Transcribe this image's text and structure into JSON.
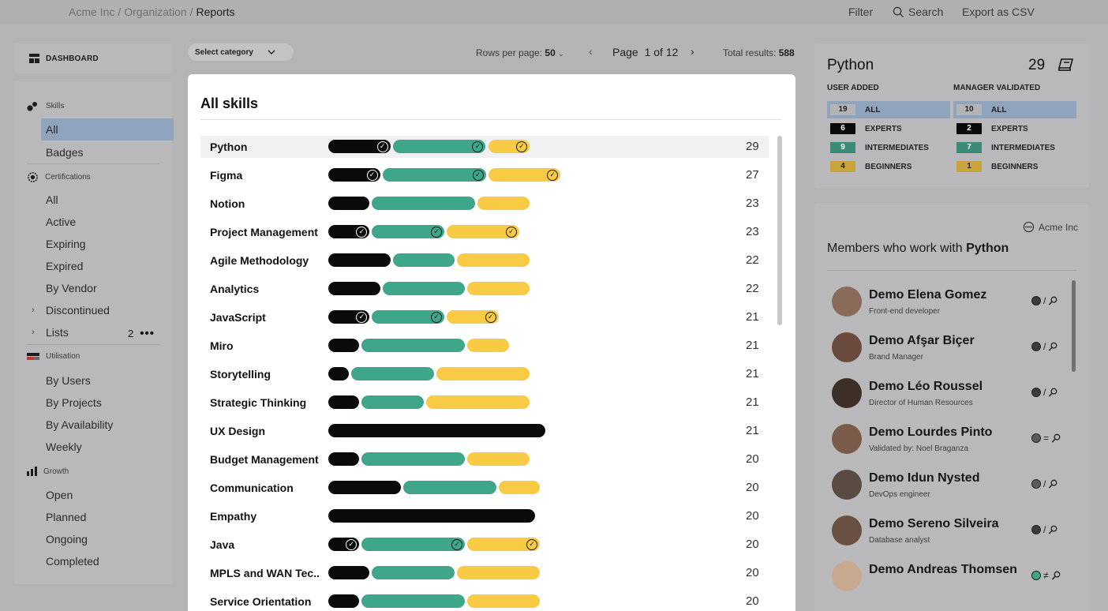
{
  "breadcrumb": {
    "org": "Acme Inc",
    "section": "Organization",
    "current": "Reports"
  },
  "toolbar": {
    "filter": "Filter",
    "search": "Search",
    "export": "Export as CSV"
  },
  "dashboard": {
    "label": "DASHBOARD"
  },
  "nav": {
    "skills": {
      "title": "Skills",
      "items": [
        "All",
        "Badges"
      ]
    },
    "certifications": {
      "title": "Certifications",
      "items": [
        "All",
        "Active",
        "Expiring",
        "Expired",
        "By Vendor"
      ],
      "expandable": [
        "Discontinued",
        "Lists"
      ],
      "lists_count": "2"
    },
    "utilisation": {
      "title": "Utilisation",
      "items": [
        "By Users",
        "By Projects",
        "By Availability",
        "Weekly"
      ]
    },
    "growth": {
      "title": "Growth",
      "items": [
        "Open",
        "Planned",
        "Ongoing",
        "Completed"
      ]
    }
  },
  "controls": {
    "category": "Select category",
    "rows_label": "Rows per page:",
    "rows_value": "50",
    "page_label": "Page",
    "page_value": "1 of 12",
    "total_label": "Total results:",
    "total_value": "588"
  },
  "card": {
    "title": "All skills"
  },
  "skills": [
    {
      "name": "Python",
      "expert": 6,
      "intermediate": 9,
      "beginner": 4,
      "count": "29",
      "verified": true
    },
    {
      "name": "Figma",
      "expert": 5,
      "intermediate": 10,
      "beginner": 7,
      "count": "27",
      "verified": true
    },
    {
      "name": "Notion",
      "expert": 4,
      "intermediate": 10,
      "beginner": 5,
      "count": "23",
      "verified": false
    },
    {
      "name": "Project Management",
      "expert": 4,
      "intermediate": 7,
      "beginner": 7,
      "count": "23",
      "verified": true
    },
    {
      "name": "Agile Methodology",
      "expert": 6,
      "intermediate": 6,
      "beginner": 7,
      "count": "22",
      "verified": false
    },
    {
      "name": "Analytics",
      "expert": 5,
      "intermediate": 8,
      "beginner": 6,
      "count": "22",
      "verified": false
    },
    {
      "name": "JavaScript",
      "expert": 4,
      "intermediate": 7,
      "beginner": 5,
      "count": "21",
      "verified": true
    },
    {
      "name": "Miro",
      "expert": 3,
      "intermediate": 10,
      "beginner": 4,
      "count": "21",
      "verified": false
    },
    {
      "name": "Storytelling",
      "expert": 2,
      "intermediate": 8,
      "beginner": 9,
      "count": "21",
      "verified": false
    },
    {
      "name": "Strategic Thinking",
      "expert": 3,
      "intermediate": 6,
      "beginner": 10,
      "count": "21",
      "verified": false
    },
    {
      "name": "UX Design",
      "expert": 21,
      "intermediate": 0,
      "beginner": 0,
      "count": "21",
      "verified": false
    },
    {
      "name": "Budget Management",
      "expert": 3,
      "intermediate": 10,
      "beginner": 6,
      "count": "20",
      "verified": false
    },
    {
      "name": "Communication",
      "expert": 7,
      "intermediate": 9,
      "beginner": 4,
      "count": "20",
      "verified": false
    },
    {
      "name": "Empathy",
      "expert": 20,
      "intermediate": 0,
      "beginner": 0,
      "count": "20",
      "verified": false
    },
    {
      "name": "Java",
      "expert": 3,
      "intermediate": 10,
      "beginner": 7,
      "count": "20",
      "verified": true
    },
    {
      "name": "MPLS and WAN Tec...",
      "expert": 4,
      "intermediate": 8,
      "beginner": 8,
      "count": "20",
      "verified": false
    },
    {
      "name": "Service Orientation",
      "expert": 3,
      "intermediate": 10,
      "beginner": 7,
      "count": "20",
      "verified": false
    }
  ],
  "summary": {
    "skill": "Python",
    "count": "29",
    "user_added": {
      "title": "USER ADDED",
      "levels": [
        {
          "label": "ALL",
          "value": "19"
        },
        {
          "label": "EXPERTS",
          "value": "6"
        },
        {
          "label": "INTERMEDIATES",
          "value": "9"
        },
        {
          "label": "BEGINNERS",
          "value": "4"
        }
      ]
    },
    "manager_validated": {
      "title": "MANAGER VALIDATED",
      "levels": [
        {
          "label": "ALL",
          "value": "10"
        },
        {
          "label": "EXPERTS",
          "value": "2"
        },
        {
          "label": "INTERMEDIATES",
          "value": "7"
        },
        {
          "label": "BEGINNERS",
          "value": "1"
        }
      ]
    }
  },
  "members": {
    "org": "Acme Inc",
    "title_prefix": "Members who work with",
    "title_skill": "Python",
    "list": [
      {
        "name": "Demo Elena Gomez",
        "role": "Front-end developer",
        "relation": "/",
        "dot": "#3b3b3d"
      },
      {
        "name": "Demo Afşar Biçer",
        "role": "Brand Manager",
        "relation": "/",
        "dot": "#3b3b3d"
      },
      {
        "name": "Demo Léo Roussel",
        "role": "Director of Human Resources",
        "relation": "/",
        "dot": "#3b3b3d"
      },
      {
        "name": "Demo Lourdes Pinto",
        "role": "Validated by: Noel Braganza",
        "relation": "=",
        "dot": "#5c5c5f"
      },
      {
        "name": "Demo Idun Nysted",
        "role": "DevOps engineer",
        "relation": "/",
        "dot": "#5c5c5f"
      },
      {
        "name": "Demo Sereno Silveira",
        "role": "Database analyst",
        "relation": "/",
        "dot": "#3b3b3d"
      },
      {
        "name": "Demo Andreas Thomsen",
        "role": "",
        "relation": "≠",
        "dot": "#3fa68c"
      }
    ]
  },
  "colors": {
    "expert": "#0a0a0a",
    "intermediate": "#3fa68c",
    "beginner": "#f9cb45",
    "highlight": "#8fa3bd"
  }
}
